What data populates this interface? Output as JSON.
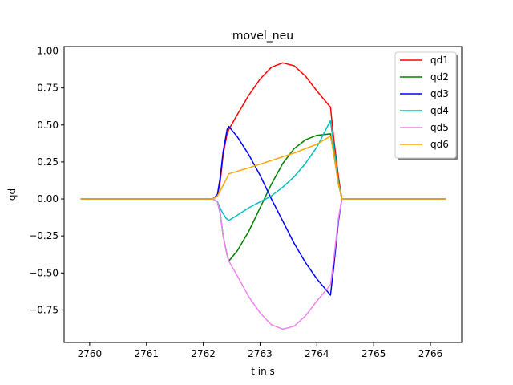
{
  "chart_data": {
    "type": "line",
    "title": "movel_neu",
    "xlabel": "t in s",
    "ylabel": "qd",
    "xlim": [
      2759.55,
      2766.55
    ],
    "ylim": [
      -0.97,
      1.03
    ],
    "x_ticks": [
      2760,
      2761,
      2762,
      2763,
      2764,
      2765,
      2766
    ],
    "y_ticks": [
      -0.75,
      -0.5,
      -0.25,
      0.0,
      0.25,
      0.5,
      0.75,
      1.0
    ],
    "x_tick_labels": [
      "2760",
      "2761",
      "2762",
      "2763",
      "2764",
      "2765",
      "2766"
    ],
    "y_tick_labels": [
      "−0.75",
      "−0.50",
      "−0.25",
      "0.00",
      "0.25",
      "0.50",
      "0.75",
      "1.00"
    ],
    "grid": false,
    "legend_position": "top-right",
    "series": [
      {
        "name": "qd1",
        "color": "#ff0000",
        "points": [
          [
            2759.85,
            0
          ],
          [
            2762.17,
            0
          ],
          [
            2762.25,
            0.02
          ],
          [
            2762.3,
            0.12
          ],
          [
            2762.35,
            0.3
          ],
          [
            2762.42,
            0.44
          ],
          [
            2762.45,
            0.47
          ],
          [
            2762.6,
            0.57
          ],
          [
            2762.8,
            0.7
          ],
          [
            2763.0,
            0.81
          ],
          [
            2763.2,
            0.89
          ],
          [
            2763.4,
            0.92
          ],
          [
            2763.6,
            0.9
          ],
          [
            2763.8,
            0.83
          ],
          [
            2764.0,
            0.73
          ],
          [
            2764.24,
            0.62
          ],
          [
            2764.3,
            0.4
          ],
          [
            2764.38,
            0.15
          ],
          [
            2764.44,
            0.0
          ],
          [
            2766.26,
            0
          ]
        ]
      },
      {
        "name": "qd2",
        "color": "#008000",
        "points": [
          [
            2759.85,
            0
          ],
          [
            2762.17,
            0
          ],
          [
            2762.25,
            -0.02
          ],
          [
            2762.3,
            -0.1
          ],
          [
            2762.35,
            -0.25
          ],
          [
            2762.42,
            -0.38
          ],
          [
            2762.45,
            -0.42
          ],
          [
            2762.6,
            -0.35
          ],
          [
            2762.8,
            -0.22
          ],
          [
            2763.0,
            -0.06
          ],
          [
            2763.2,
            0.1
          ],
          [
            2763.4,
            0.24
          ],
          [
            2763.6,
            0.34
          ],
          [
            2763.8,
            0.4
          ],
          [
            2764.0,
            0.43
          ],
          [
            2764.24,
            0.44
          ],
          [
            2764.3,
            0.3
          ],
          [
            2764.38,
            0.1
          ],
          [
            2764.44,
            0.0
          ],
          [
            2766.26,
            0
          ]
        ]
      },
      {
        "name": "qd3",
        "color": "#0000ff",
        "points": [
          [
            2759.85,
            0
          ],
          [
            2762.17,
            0
          ],
          [
            2762.25,
            0.03
          ],
          [
            2762.3,
            0.15
          ],
          [
            2762.35,
            0.32
          ],
          [
            2762.42,
            0.47
          ],
          [
            2762.45,
            0.49
          ],
          [
            2762.6,
            0.42
          ],
          [
            2762.8,
            0.3
          ],
          [
            2763.0,
            0.16
          ],
          [
            2763.2,
            0.0
          ],
          [
            2763.4,
            -0.15
          ],
          [
            2763.6,
            -0.3
          ],
          [
            2763.8,
            -0.43
          ],
          [
            2764.0,
            -0.54
          ],
          [
            2764.24,
            -0.65
          ],
          [
            2764.3,
            -0.45
          ],
          [
            2764.38,
            -0.15
          ],
          [
            2764.44,
            0.0
          ],
          [
            2766.26,
            0
          ]
        ]
      },
      {
        "name": "qd4",
        "color": "#00bfbf",
        "points": [
          [
            2759.85,
            0
          ],
          [
            2762.17,
            0
          ],
          [
            2762.25,
            -0.02
          ],
          [
            2762.32,
            -0.08
          ],
          [
            2762.4,
            -0.13
          ],
          [
            2762.45,
            -0.145
          ],
          [
            2762.6,
            -0.11
          ],
          [
            2762.8,
            -0.06
          ],
          [
            2763.0,
            -0.02
          ],
          [
            2763.2,
            0.02
          ],
          [
            2763.4,
            0.08
          ],
          [
            2763.6,
            0.15
          ],
          [
            2763.8,
            0.24
          ],
          [
            2764.0,
            0.35
          ],
          [
            2764.24,
            0.53
          ],
          [
            2764.3,
            0.35
          ],
          [
            2764.38,
            0.12
          ],
          [
            2764.44,
            0.0
          ],
          [
            2766.26,
            0
          ]
        ]
      },
      {
        "name": "qd5",
        "color": "#ee82ee",
        "points": [
          [
            2759.85,
            0
          ],
          [
            2762.17,
            0
          ],
          [
            2762.25,
            -0.02
          ],
          [
            2762.3,
            -0.1
          ],
          [
            2762.35,
            -0.25
          ],
          [
            2762.42,
            -0.38
          ],
          [
            2762.45,
            -0.42
          ],
          [
            2762.6,
            -0.52
          ],
          [
            2762.8,
            -0.66
          ],
          [
            2763.0,
            -0.77
          ],
          [
            2763.2,
            -0.85
          ],
          [
            2763.4,
            -0.88
          ],
          [
            2763.6,
            -0.86
          ],
          [
            2763.8,
            -0.79
          ],
          [
            2764.0,
            -0.69
          ],
          [
            2764.24,
            -0.58
          ],
          [
            2764.3,
            -0.4
          ],
          [
            2764.38,
            -0.13
          ],
          [
            2764.44,
            0.0
          ],
          [
            2766.26,
            0
          ]
        ]
      },
      {
        "name": "qd6",
        "color": "#ffa500",
        "points": [
          [
            2759.85,
            0
          ],
          [
            2762.17,
            0
          ],
          [
            2762.25,
            0.02
          ],
          [
            2762.32,
            0.07
          ],
          [
            2762.4,
            0.13
          ],
          [
            2762.45,
            0.17
          ],
          [
            2762.8,
            0.21
          ],
          [
            2763.2,
            0.26
          ],
          [
            2763.6,
            0.31
          ],
          [
            2764.0,
            0.37
          ],
          [
            2764.24,
            0.425
          ],
          [
            2764.3,
            0.3
          ],
          [
            2764.38,
            0.1
          ],
          [
            2764.44,
            0.0
          ],
          [
            2766.26,
            0
          ]
        ]
      }
    ]
  }
}
